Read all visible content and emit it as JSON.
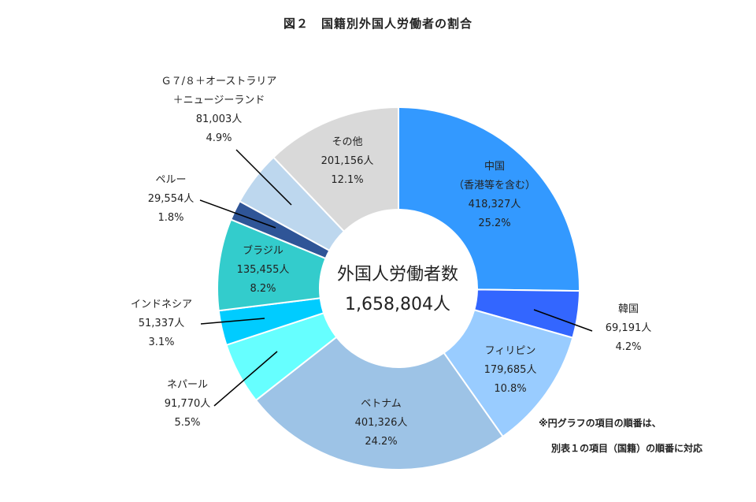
{
  "chart_data": {
    "type": "pie",
    "title": "図２　国籍別外国人労働者の割合",
    "center_label": {
      "line1": "外国人労働者数",
      "line2": "1,658,804人"
    },
    "slices": [
      {
        "name": "中国",
        "name2": "（香港等を含む）",
        "count": "418,327人",
        "percent": "25.2%",
        "value": 418327,
        "color": "#3399ff"
      },
      {
        "name": "韓国",
        "count": "69,191人",
        "percent": "4.2%",
        "value": 69191,
        "color": "#3366ff"
      },
      {
        "name": "フィリピン",
        "count": "179,685人",
        "percent": "10.8%",
        "value": 179685,
        "color": "#99ccff"
      },
      {
        "name": "ベトナム",
        "count": "401,326人",
        "percent": "24.2%",
        "value": 401326,
        "color": "#9dc3e6"
      },
      {
        "name": "ネパール",
        "count": "91,770人",
        "percent": "5.5%",
        "value": 91770,
        "color": "#66ffff"
      },
      {
        "name": "インドネシア",
        "count": "51,337人",
        "percent": "3.1%",
        "value": 51337,
        "color": "#00ccff"
      },
      {
        "name": "ブラジル",
        "count": "135,455人",
        "percent": "8.2%",
        "value": 135455,
        "color": "#33cccc"
      },
      {
        "name": "ペルー",
        "count": "29,554人",
        "percent": "1.8%",
        "value": 29554,
        "color": "#2f5597"
      },
      {
        "name": "Ｇ７/８＋オーストラリア",
        "name2": "＋ニュージーランド",
        "count": "81,003人",
        "percent": "4.9%",
        "value": 81003,
        "color": "#bdd7ee"
      },
      {
        "name": "その他",
        "count": "201,156人",
        "percent": "12.1%",
        "value": 201156,
        "color": "#d9d9d9"
      }
    ]
  },
  "note": {
    "line1": "※円グラフの項目の順番は、",
    "line2": "別表１の項目（国籍）の順番に対応"
  }
}
